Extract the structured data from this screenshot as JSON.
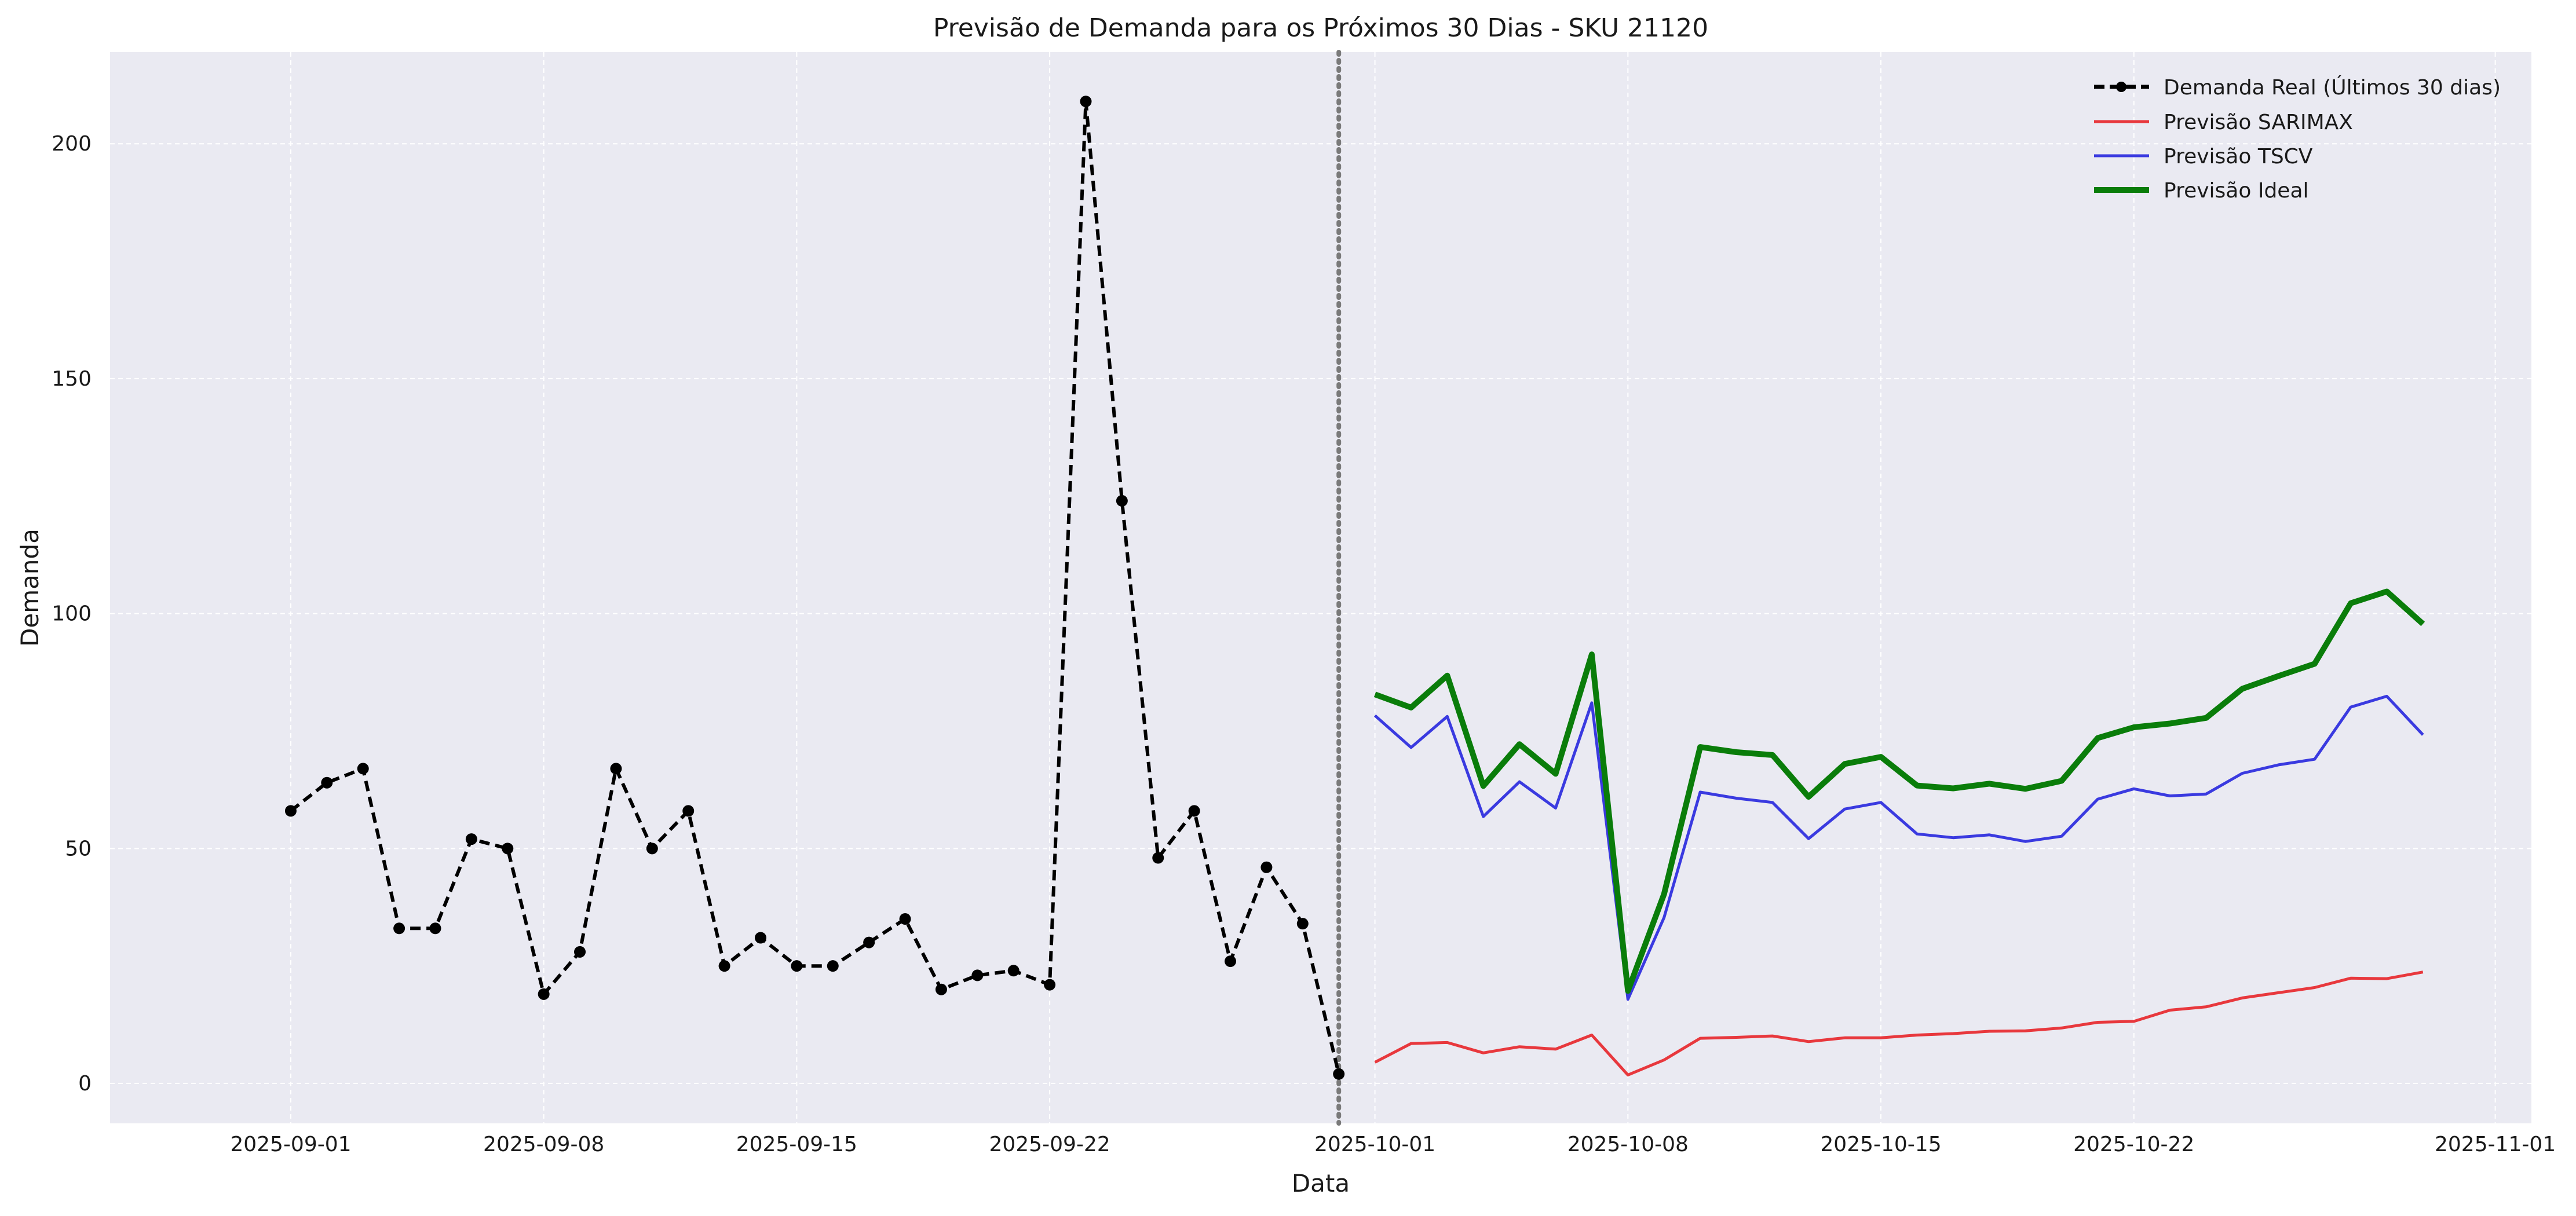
{
  "chart_data": {
    "type": "line",
    "title": "Previsão de Demanda para os Próximos 30 Dias - SKU 21120",
    "xlabel": "Data",
    "ylabel": "Demanda",
    "xlim": [
      "2025-08-27",
      "2025-11-02"
    ],
    "ylim": [
      -8.5,
      219.5
    ],
    "x_ticks": [
      "2025-09-01",
      "2025-09-08",
      "2025-09-15",
      "2025-09-22",
      "2025-10-01",
      "2025-10-08",
      "2025-10-15",
      "2025-10-22",
      "2025-11-01"
    ],
    "y_ticks": [
      0,
      50,
      100,
      150,
      200
    ],
    "grid": true,
    "legend_position": "top-right",
    "forecast_start_marker": "2025-09-30",
    "series": [
      {
        "name": "Demanda Real (Últimos 30 dias)",
        "color": "#000000",
        "style": "dashed-markers",
        "x": [
          "2025-09-01",
          "2025-09-02",
          "2025-09-03",
          "2025-09-04",
          "2025-09-05",
          "2025-09-06",
          "2025-09-07",
          "2025-09-08",
          "2025-09-09",
          "2025-09-10",
          "2025-09-11",
          "2025-09-12",
          "2025-09-13",
          "2025-09-14",
          "2025-09-15",
          "2025-09-16",
          "2025-09-17",
          "2025-09-18",
          "2025-09-19",
          "2025-09-20",
          "2025-09-21",
          "2025-09-22",
          "2025-09-23",
          "2025-09-24",
          "2025-09-25",
          "2025-09-26",
          "2025-09-27",
          "2025-09-28",
          "2025-09-29",
          "2025-09-30"
        ],
        "values": [
          58,
          64,
          67,
          33,
          33,
          52,
          50,
          19,
          28,
          67,
          50,
          58,
          25,
          31,
          25,
          25,
          30,
          35,
          20,
          23,
          24,
          21,
          209,
          124,
          48,
          58,
          26,
          46,
          34,
          2
        ]
      },
      {
        "name": "Previsão SARIMAX",
        "color": "#e8383d",
        "style": "solid",
        "x": [
          "2025-10-01",
          "2025-10-02",
          "2025-10-03",
          "2025-10-04",
          "2025-10-05",
          "2025-10-06",
          "2025-10-07",
          "2025-10-08",
          "2025-10-09",
          "2025-10-10",
          "2025-10-11",
          "2025-10-12",
          "2025-10-13",
          "2025-10-14",
          "2025-10-15",
          "2025-10-16",
          "2025-10-17",
          "2025-10-18",
          "2025-10-19",
          "2025-10-20",
          "2025-10-21",
          "2025-10-22",
          "2025-10-23",
          "2025-10-24",
          "2025-10-25",
          "2025-10-26",
          "2025-10-27",
          "2025-10-28",
          "2025-10-29",
          "2025-10-30"
        ],
        "values": [
          4.5,
          8.5,
          8.7,
          6.5,
          7.8,
          7.3,
          10.3,
          1.8,
          5.0,
          9.6,
          9.8,
          10.1,
          8.9,
          9.7,
          9.7,
          10.3,
          10.6,
          11.1,
          11.2,
          11.8,
          13.0,
          13.2,
          15.6,
          16.3,
          18.2,
          19.3,
          20.4,
          22.4,
          22.3,
          23.7
        ]
      },
      {
        "name": "Previsão TSCV",
        "color": "#3a3ae0",
        "style": "solid",
        "x": [
          "2025-10-01",
          "2025-10-02",
          "2025-10-03",
          "2025-10-04",
          "2025-10-05",
          "2025-10-06",
          "2025-10-07",
          "2025-10-08",
          "2025-10-09",
          "2025-10-10",
          "2025-10-11",
          "2025-10-12",
          "2025-10-13",
          "2025-10-14",
          "2025-10-15",
          "2025-10-16",
          "2025-10-17",
          "2025-10-18",
          "2025-10-19",
          "2025-10-20",
          "2025-10-21",
          "2025-10-22",
          "2025-10-23",
          "2025-10-24",
          "2025-10-25",
          "2025-10-26",
          "2025-10-27",
          "2025-10-28",
          "2025-10-29",
          "2025-10-30"
        ],
        "values": [
          78.3,
          71.5,
          78.1,
          56.8,
          64.2,
          58.6,
          81.0,
          17.9,
          35.3,
          62.0,
          60.7,
          59.8,
          52.1,
          58.4,
          59.8,
          53.1,
          52.3,
          52.9,
          51.5,
          52.6,
          60.5,
          62.7,
          61.2,
          61.6,
          66.0,
          67.8,
          69.0,
          80.1,
          82.4,
          74.2
        ]
      },
      {
        "name": "Previsão Ideal",
        "color": "#0a7d0a",
        "style": "solid-bold",
        "x": [
          "2025-10-01",
          "2025-10-02",
          "2025-10-03",
          "2025-10-04",
          "2025-10-05",
          "2025-10-06",
          "2025-10-07",
          "2025-10-08",
          "2025-10-09",
          "2025-10-10",
          "2025-10-11",
          "2025-10-12",
          "2025-10-13",
          "2025-10-14",
          "2025-10-15",
          "2025-10-16",
          "2025-10-17",
          "2025-10-18",
          "2025-10-19",
          "2025-10-20",
          "2025-10-21",
          "2025-10-22",
          "2025-10-23",
          "2025-10-24",
          "2025-10-25",
          "2025-10-26",
          "2025-10-27",
          "2025-10-28",
          "2025-10-29",
          "2025-10-30"
        ],
        "values": [
          82.8,
          80.0,
          86.8,
          63.3,
          72.2,
          65.9,
          91.3,
          19.7,
          40.3,
          71.6,
          70.5,
          69.9,
          61.0,
          68.0,
          69.5,
          63.4,
          62.8,
          63.8,
          62.7,
          64.4,
          73.5,
          75.8,
          76.6,
          77.8,
          84.0,
          86.7,
          89.3,
          102.2,
          104.7,
          97.8
        ]
      }
    ]
  }
}
